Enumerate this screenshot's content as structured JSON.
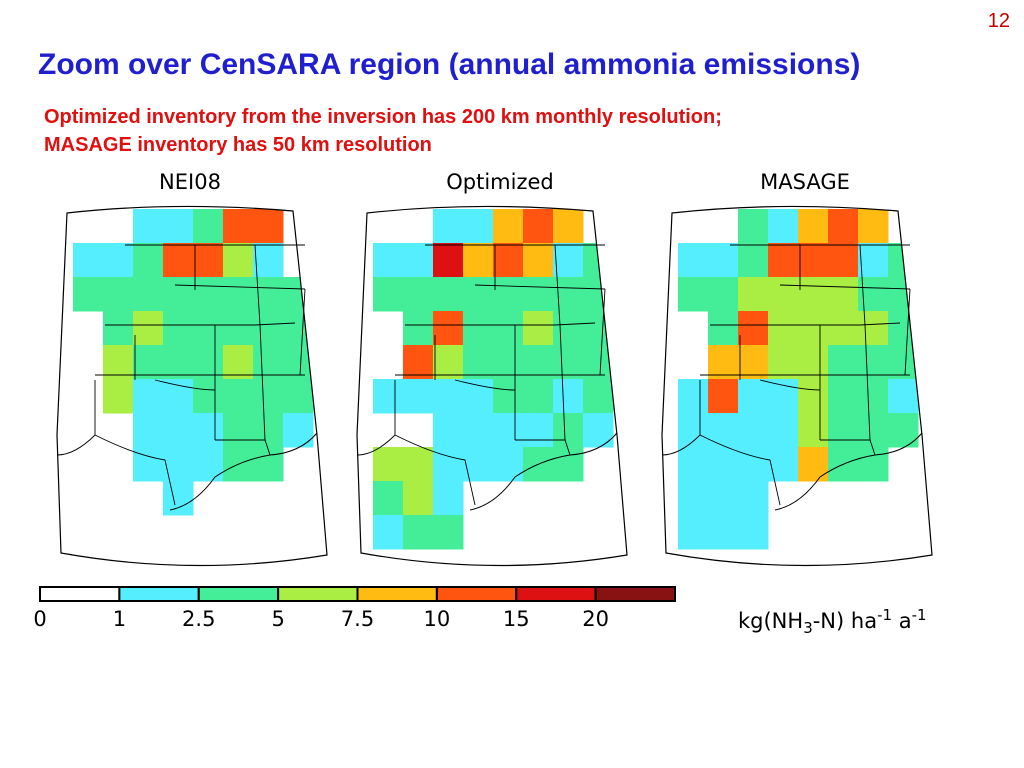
{
  "slide": {
    "number": "12",
    "title": "Zoom over CenSARA region (annual ammonia emissions)",
    "subtitle_line1": "Optimized inventory from the inversion has 200 km monthly resolution;",
    "subtitle_line2": "MASAGE inventory has 50 km resolution"
  },
  "map_data": {
    "legend": {
      "colors": [
        "#ffffff",
        "#55eeff",
        "#44ee99",
        "#aaee44",
        "#ffbb11",
        "#ff5511",
        "#dd1111",
        "#881111"
      ],
      "tick_labels": [
        "0",
        "1",
        "2.5",
        "5",
        "7.5",
        "10",
        "15",
        "20"
      ],
      "units": {
        "prefix": "kg(NH",
        "sub": "3",
        "mid": "-N) ha",
        "exp1": "-1",
        "mid2": " a",
        "exp2": "-1"
      }
    },
    "panels": [
      {
        "label": "NEI08",
        "grid": [
          "00112550",
          "11255310",
          "22222222",
          "02322222",
          "03222322",
          "03112222",
          "00111221",
          "00111220",
          "00010000",
          "00000000"
        ]
      },
      {
        "label": "Optimized",
        "grid": [
          "00114540",
          "11645412",
          "22222222",
          "02522322",
          "05322222",
          "11112212",
          "00111121",
          "33111220",
          "23100000",
          "12200000"
        ]
      },
      {
        "label": "MASAGE",
        "grid": [
          "00214540",
          "11255512",
          "22333322",
          "02533332",
          "04433222",
          "15113221",
          "11113222",
          "11114220",
          "11100000",
          "11100000"
        ]
      }
    ]
  }
}
